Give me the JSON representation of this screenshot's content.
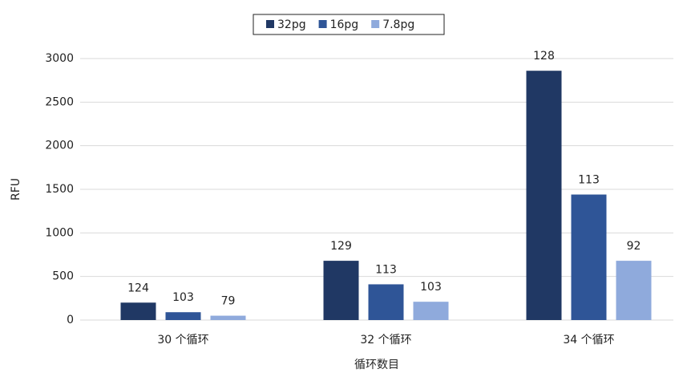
{
  "chart_data": {
    "type": "bar",
    "categories": [
      "30 个循环",
      "32 个循环",
      "34 个循环"
    ],
    "x_label": "循环数目",
    "y_label": "RFU",
    "ylim": [
      0,
      3000
    ],
    "yticks": [
      0,
      500,
      1000,
      1500,
      2000,
      2500,
      3000
    ],
    "grid": true,
    "legend": "top",
    "series": [
      {
        "name": "32pg",
        "color": "#203864",
        "values": [
          200,
          680,
          2860
        ],
        "annotations": [
          124,
          129,
          128
        ]
      },
      {
        "name": "16pg",
        "color": "#2f5597",
        "values": [
          90,
          410,
          1440
        ],
        "annotations": [
          103,
          113,
          113
        ]
      },
      {
        "name": "7.8pg",
        "color": "#8faadc",
        "values": [
          50,
          210,
          680
        ],
        "annotations": [
          79,
          103,
          92
        ]
      }
    ]
  }
}
